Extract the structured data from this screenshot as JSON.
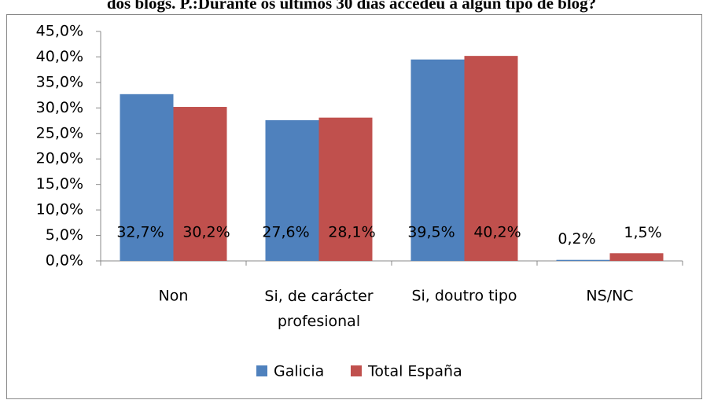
{
  "chart_data": {
    "type": "bar",
    "title": "dos blogs. P.:Durante os últimos 30 días accedeu a algún tipo de blog?",
    "categories": [
      "Non",
      "Si, de carácter profesional",
      "Si, doutro tipo",
      "NS/NC"
    ],
    "series": [
      {
        "name": "Galicia",
        "color": "#4f81bd",
        "values": [
          32.7,
          27.6,
          39.5,
          0.2
        ],
        "value_labels": [
          "32,7%",
          "27,6%",
          "39,5%",
          "0,2%"
        ]
      },
      {
        "name": "Total España",
        "color": "#c0504d",
        "values": [
          30.2,
          28.1,
          40.2,
          1.5
        ],
        "value_labels": [
          "30,2%",
          "28,1%",
          "40,2%",
          "1,5%"
        ]
      }
    ],
    "ylim": [
      0,
      45
    ],
    "yticks": [
      {
        "value": 0,
        "label": "0,0%"
      },
      {
        "value": 5,
        "label": "5,0%"
      },
      {
        "value": 10,
        "label": "10,0%"
      },
      {
        "value": 15,
        "label": "15,0%"
      },
      {
        "value": 20,
        "label": "20,0%"
      },
      {
        "value": 25,
        "label": "25,0%"
      },
      {
        "value": 30,
        "label": "30,0%"
      },
      {
        "value": 35,
        "label": "35,0%"
      },
      {
        "value": 40,
        "label": "40,0%"
      },
      {
        "value": 45,
        "label": "45,0%"
      }
    ],
    "grid": false,
    "legend": "bottom"
  }
}
